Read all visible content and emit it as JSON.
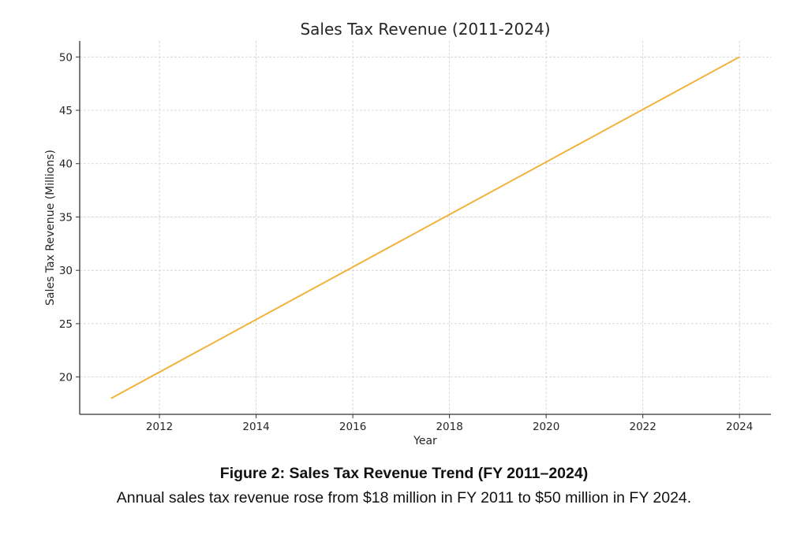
{
  "chart_data": {
    "type": "line",
    "title": "Sales Tax Revenue (2011-2024)",
    "xlabel": "Year",
    "ylabel": "Sales Tax Revenue (Millions)",
    "xlim": [
      2010.35,
      2024.65
    ],
    "ylim": [
      16.5,
      51.5
    ],
    "x_ticks": [
      2012,
      2014,
      2016,
      2018,
      2020,
      2022,
      2024
    ],
    "y_ticks": [
      20,
      25,
      30,
      35,
      40,
      45,
      50
    ],
    "grid": true,
    "series": [
      {
        "color": "#f2b33d",
        "x": [
          2011,
          2024
        ],
        "y": [
          18,
          50
        ]
      }
    ]
  },
  "figure": {
    "caption_title": "Figure 2: Sales Tax Revenue Trend (FY 2011–2024)",
    "caption_text": "Annual sales tax revenue rose from $18 million in FY 2011 to $50 million in FY 2024."
  }
}
